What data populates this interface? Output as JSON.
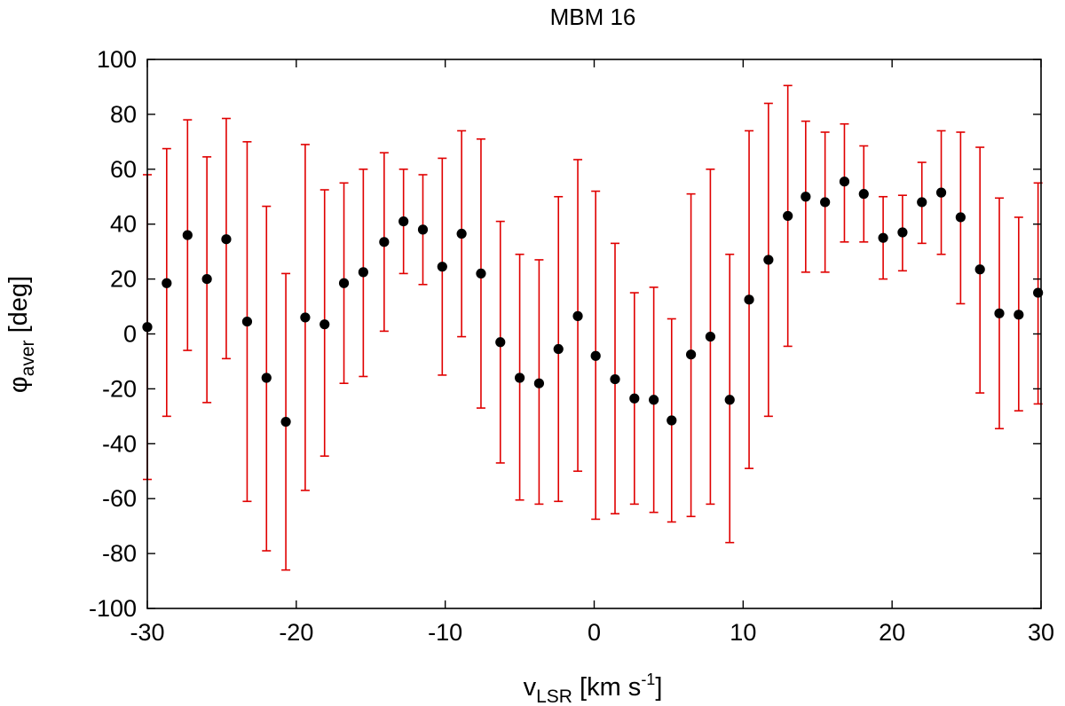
{
  "chart_data": {
    "type": "scatter",
    "title": "MBM 16",
    "xlabel": {
      "main": "v",
      "sub": "LSR",
      "pre": " [km s",
      "sup": "-1",
      "post": "]"
    },
    "ylabel": {
      "main": "φ",
      "sub": "aver",
      "post": " [deg]"
    },
    "xlim": [
      -30,
      30
    ],
    "ylim": [
      -100,
      100
    ],
    "xticks": [
      -30,
      -20,
      -10,
      0,
      10,
      20,
      30
    ],
    "yticks": [
      -100,
      -80,
      -60,
      -40,
      -20,
      0,
      20,
      40,
      60,
      80,
      100
    ],
    "grid": false,
    "colors": {
      "points": "#000000",
      "errorbars": "#e00000",
      "axes": "#000000"
    },
    "series": [
      {
        "points": [
          {
            "x": -30.0,
            "y": 2.5,
            "lo": -53,
            "hi": 58
          },
          {
            "x": -28.7,
            "y": 18.5,
            "lo": -30,
            "hi": 67.5
          },
          {
            "x": -27.3,
            "y": 36,
            "lo": -6,
            "hi": 78
          },
          {
            "x": -26.0,
            "y": 20,
            "lo": -25,
            "hi": 64.5
          },
          {
            "x": -24.7,
            "y": 34.5,
            "lo": -9,
            "hi": 78.5
          },
          {
            "x": -23.3,
            "y": 4.5,
            "lo": -61,
            "hi": 70
          },
          {
            "x": -22.0,
            "y": -16,
            "lo": -79,
            "hi": 46.5
          },
          {
            "x": -20.7,
            "y": -32,
            "lo": -86,
            "hi": 22
          },
          {
            "x": -19.4,
            "y": 6,
            "lo": -57,
            "hi": 69
          },
          {
            "x": -18.1,
            "y": 3.5,
            "lo": -44.5,
            "hi": 52.5
          },
          {
            "x": -16.8,
            "y": 18.5,
            "lo": -18,
            "hi": 55
          },
          {
            "x": -15.5,
            "y": 22.5,
            "lo": -15.5,
            "hi": 60
          },
          {
            "x": -14.1,
            "y": 33.5,
            "lo": 1,
            "hi": 66
          },
          {
            "x": -12.8,
            "y": 41,
            "lo": 22,
            "hi": 60
          },
          {
            "x": -11.5,
            "y": 38,
            "lo": 18,
            "hi": 58
          },
          {
            "x": -10.2,
            "y": 24.5,
            "lo": -15,
            "hi": 64
          },
          {
            "x": -8.9,
            "y": 36.5,
            "lo": -1,
            "hi": 74
          },
          {
            "x": -7.6,
            "y": 22,
            "lo": -27,
            "hi": 71
          },
          {
            "x": -6.3,
            "y": -3,
            "lo": -47,
            "hi": 41
          },
          {
            "x": -5.0,
            "y": -16,
            "lo": -60.5,
            "hi": 29
          },
          {
            "x": -3.7,
            "y": -18,
            "lo": -62,
            "hi": 27
          },
          {
            "x": -2.4,
            "y": -5.5,
            "lo": -61,
            "hi": 50
          },
          {
            "x": -1.1,
            "y": 6.5,
            "lo": -50,
            "hi": 63.5
          },
          {
            "x": 0.1,
            "y": -8,
            "lo": -67.5,
            "hi": 52
          },
          {
            "x": 1.4,
            "y": -16.5,
            "lo": -65.5,
            "hi": 33
          },
          {
            "x": 2.7,
            "y": -23.5,
            "lo": -62,
            "hi": 15
          },
          {
            "x": 4.0,
            "y": -24,
            "lo": -65,
            "hi": 17
          },
          {
            "x": 5.2,
            "y": -31.5,
            "lo": -68.5,
            "hi": 5.5
          },
          {
            "x": 6.5,
            "y": -7.5,
            "lo": -66.5,
            "hi": 51
          },
          {
            "x": 7.8,
            "y": -1,
            "lo": -62,
            "hi": 60
          },
          {
            "x": 9.1,
            "y": -24,
            "lo": -76,
            "hi": 29
          },
          {
            "x": 10.4,
            "y": 12.5,
            "lo": -49,
            "hi": 74
          },
          {
            "x": 11.7,
            "y": 27,
            "lo": -30,
            "hi": 84
          },
          {
            "x": 13.0,
            "y": 43,
            "lo": -4.5,
            "hi": 90.5
          },
          {
            "x": 14.2,
            "y": 50,
            "lo": 22.5,
            "hi": 77.5
          },
          {
            "x": 15.5,
            "y": 48,
            "lo": 22.5,
            "hi": 73.5
          },
          {
            "x": 16.8,
            "y": 55.5,
            "lo": 33.5,
            "hi": 76.5
          },
          {
            "x": 18.1,
            "y": 51,
            "lo": 33.5,
            "hi": 68.5
          },
          {
            "x": 19.4,
            "y": 35,
            "lo": 20,
            "hi": 50
          },
          {
            "x": 20.7,
            "y": 37,
            "lo": 23,
            "hi": 50.5
          },
          {
            "x": 22.0,
            "y": 48,
            "lo": 33,
            "hi": 62.5
          },
          {
            "x": 23.3,
            "y": 51.5,
            "lo": 29,
            "hi": 74
          },
          {
            "x": 24.6,
            "y": 42.5,
            "lo": 11,
            "hi": 73.5
          },
          {
            "x": 25.9,
            "y": 23.5,
            "lo": -21.5,
            "hi": 68
          },
          {
            "x": 27.2,
            "y": 7.5,
            "lo": -34.5,
            "hi": 49.5
          },
          {
            "x": 28.5,
            "y": 7,
            "lo": -28,
            "hi": 42.5
          },
          {
            "x": 29.8,
            "y": 15,
            "lo": -25.5,
            "hi": 55
          }
        ]
      }
    ]
  }
}
